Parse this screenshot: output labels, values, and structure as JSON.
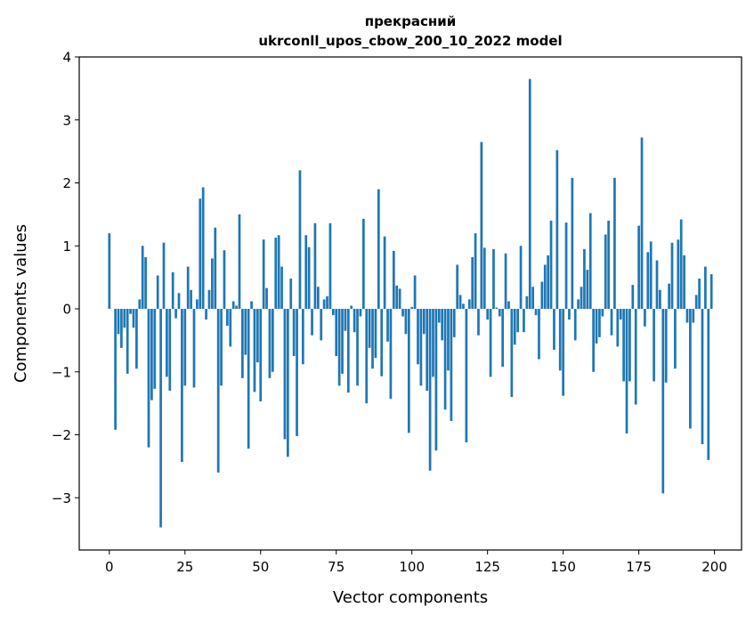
{
  "chart_data": {
    "type": "bar",
    "title": "прекрасний",
    "subtitle": "ukrconll_upos_cbow_200_10_2022 model",
    "xlabel": "Vector components",
    "ylabel": "Components values",
    "xlim": [
      -9.95,
      208.95
    ],
    "ylim": [
      -3.83,
      4
    ],
    "xticks": [
      0,
      25,
      50,
      75,
      100,
      125,
      150,
      175,
      200
    ],
    "yticks": [
      4,
      3,
      2,
      1,
      0,
      -1,
      -2,
      -3
    ],
    "ytick_labels": [
      "4",
      "3",
      "2",
      "1",
      "0",
      "−1",
      "−2",
      "−3"
    ],
    "grid": false,
    "color": "#1f77b4",
    "values": [
      1.2,
      0,
      -1.92,
      -0.4,
      -0.62,
      -0.3,
      -1.03,
      -0.08,
      -0.3,
      -0.95,
      0.15,
      1.0,
      0.82,
      -2.2,
      -1.45,
      -1.27,
      0.53,
      -3.47,
      1.05,
      -1.08,
      -1.3,
      0.58,
      -0.15,
      0.25,
      -2.43,
      -1.22,
      0.67,
      0.3,
      -1.25,
      0.15,
      1.75,
      1.93,
      -0.17,
      0.3,
      0.8,
      1.29,
      -2.6,
      -1.22,
      0.93,
      -0.27,
      -0.6,
      0.12,
      0.05,
      1.5,
      -1.1,
      -0.73,
      -2.22,
      0.12,
      -1.32,
      -0.85,
      -1.47,
      1.1,
      0.33,
      -1.1,
      -1.0,
      1.13,
      1.17,
      0.67,
      -2.07,
      -2.35,
      0.48,
      -0.75,
      -2.02,
      2.2,
      -0.88,
      1.17,
      0.98,
      -0.42,
      1.36,
      0.35,
      -0.5,
      0.15,
      0.2,
      1.36,
      -0.1,
      -0.75,
      -1.22,
      -1.03,
      -0.35,
      -1.33,
      0.05,
      -0.37,
      -1.22,
      -0.12,
      1.43,
      -1.5,
      -0.62,
      -0.95,
      -0.78,
      1.9,
      -1.07,
      1.15,
      -0.52,
      -1.43,
      0.92,
      0.37,
      0.32,
      -0.12,
      -0.4,
      -1.97,
      0.03,
      0.53,
      -0.88,
      -1.22,
      -0.4,
      -1.3,
      -2.57,
      -1.08,
      -2.25,
      -0.22,
      -0.5,
      -1.6,
      -0.98,
      -1.78,
      -0.45,
      0.7,
      0.22,
      0.08,
      -2.12,
      0.15,
      0.82,
      1.2,
      -0.42,
      2.65,
      0.97,
      -0.17,
      -1.08,
      0.95,
      0.02,
      -0.12,
      -0.92,
      0.88,
      0.12,
      -1.4,
      -0.57,
      -0.37,
      1.0,
      -0.37,
      0.2,
      3.65,
      0.35,
      -0.1,
      -0.8,
      0.43,
      0.7,
      0.85,
      1.4,
      -0.65,
      2.52,
      -0.98,
      -1.38,
      1.37,
      -0.17,
      2.08,
      -0.5,
      0.15,
      0.35,
      0.95,
      0.62,
      1.52,
      -1.0,
      -0.55,
      -0.45,
      -0.12,
      1.18,
      1.4,
      -0.42,
      2.08,
      -0.6,
      -0.17,
      -1.15,
      -1.98,
      -1.15,
      0.38,
      -1.52,
      1.32,
      2.72,
      -0.28,
      0.9,
      1.07,
      -1.15,
      0.77,
      0.3,
      -2.93,
      -1.17,
      0.4,
      1.05,
      -0.95,
      1.1,
      1.42,
      0.85,
      -0.22,
      -1.9,
      -0.22,
      0.22,
      0.48,
      -2.15,
      0.67,
      -2.4,
      0.55
    ]
  }
}
